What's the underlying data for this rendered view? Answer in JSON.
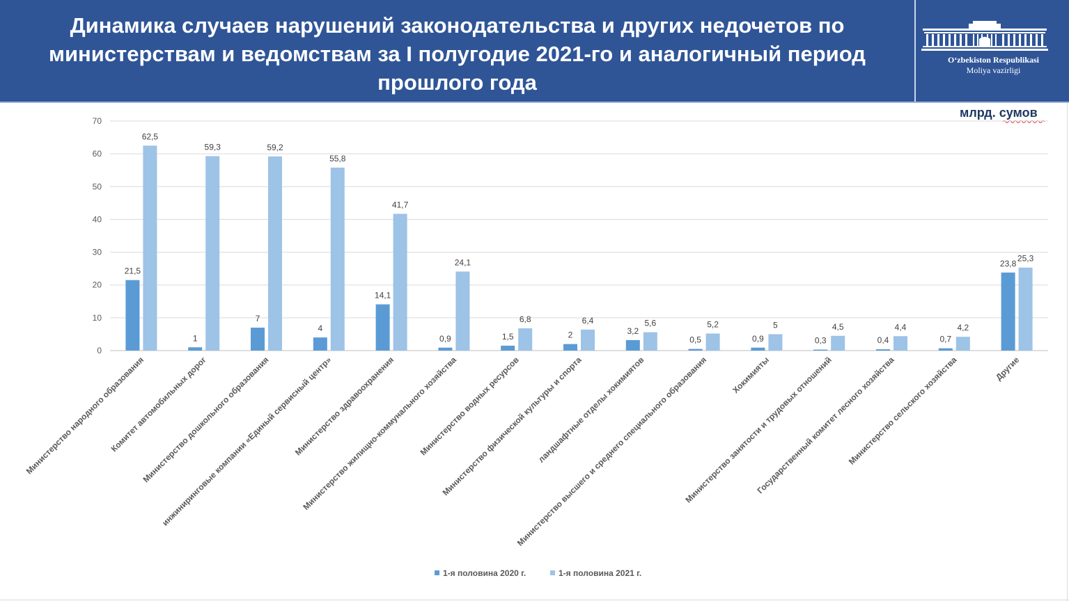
{
  "header": {
    "title": "Динамика случаев нарушений законодательства и других недочетов по министерствам и ведомствам за I полугодие 2021-го и аналогичный период прошлого года",
    "logo_line1": "O‘zbekiston Respublikasi",
    "logo_line2": "Moliya vazirligi",
    "background_color": "#2f5597"
  },
  "unit_label": "млрд. сумов",
  "chart_data": {
    "type": "bar",
    "categories": [
      "Министерство народного образования",
      "Комитет автомобильных дорог",
      "Министерство дошкольного образования",
      "инжиниринговые компании «Единый сервисный центр»",
      "Министерство здравоохранения",
      "Министерство жилищно-коммунального хозяйства",
      "Министерство водных ресурсов",
      "Министерство физической культуры и спорта",
      "ландшафтные отделы хокимиятов",
      "Министерство высшего и среднего специального образования",
      "Хокимияты",
      "Министерство занятости и трудовых отношений",
      "Государственный комитет лесного хозяйства",
      "Министерство сельского хозяйства",
      "Другие"
    ],
    "series": [
      {
        "name": "1-я половина 2020 г.",
        "color": "#5b9bd5",
        "values": [
          21.5,
          1,
          7,
          4,
          14.1,
          0.9,
          1.5,
          2,
          3.2,
          0.5,
          0.9,
          0.3,
          0.4,
          0.7,
          23.8
        ],
        "labels": [
          "21,5",
          "1",
          "7",
          "4",
          "14,1",
          "0,9",
          "1,5",
          "2",
          "3,2",
          "0,5",
          "0,9",
          "0,3",
          "0,4",
          "0,7",
          "23,8"
        ]
      },
      {
        "name": "1-я половина 2021 г.",
        "color": "#9dc3e6",
        "values": [
          62.5,
          59.3,
          59.2,
          55.8,
          41.7,
          24.1,
          6.8,
          6.4,
          5.6,
          5.2,
          5,
          4.5,
          4.4,
          4.2,
          25.3
        ],
        "labels": [
          "62,5",
          "59,3",
          "59,2",
          "55,8",
          "41,7",
          "24,1",
          "6,8",
          "6,4",
          "5,6",
          "5,2",
          "5",
          "4,5",
          "4,4",
          "4,2",
          "25,3"
        ]
      }
    ],
    "ylim": [
      0,
      70
    ],
    "yticks": [
      0,
      10,
      20,
      30,
      40,
      50,
      60,
      70
    ],
    "grid": true,
    "legend_position": "bottom-center"
  }
}
